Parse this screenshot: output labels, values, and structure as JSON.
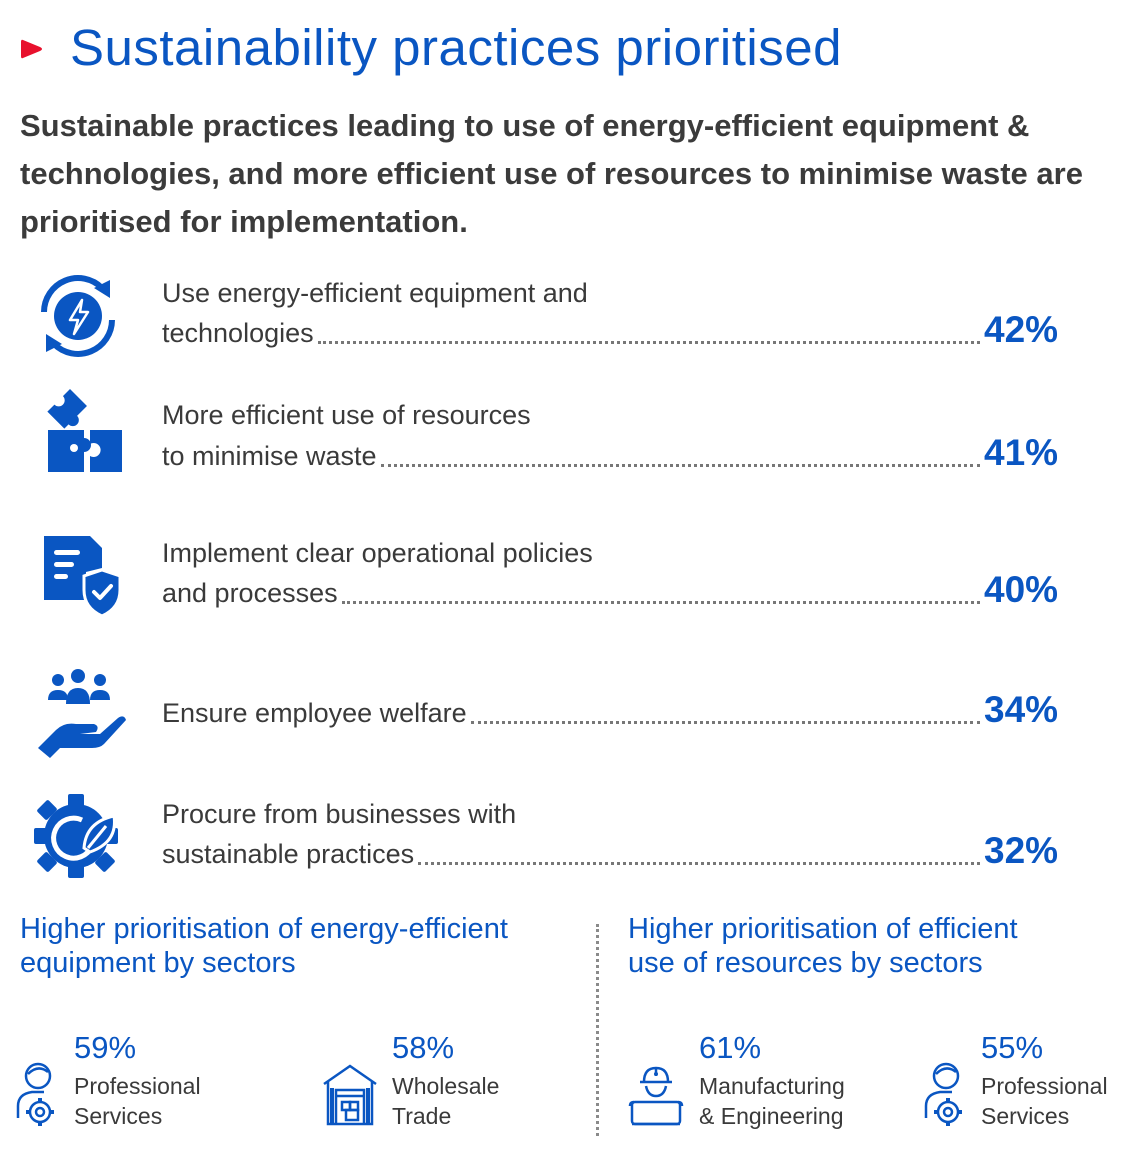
{
  "title": "Sustainability practices prioritised",
  "subtitle": "Sustainable practices leading to use of energy-efficient equipment & technologies, and more efficient use of resources to minimise waste are prioritised for implementation.",
  "colors": {
    "accent": "#0a56c2",
    "marker": "#e8112d",
    "text": "#3a3a3a"
  },
  "chart_data": {
    "type": "bar",
    "categories": [
      "Use energy-efficient equipment and technologies",
      "More efficient use of resources to minimise waste",
      "Implement clear operational policies and processes",
      "Ensure employee welfare",
      "Procure from businesses with sustainable practices"
    ],
    "values": [
      42,
      41,
      40,
      34,
      32
    ],
    "unit": "%"
  },
  "items": [
    {
      "icon": "energy-cycle-icon",
      "line1": "Use energy-efficient equipment and",
      "line2": "technologies",
      "value": "42%"
    },
    {
      "icon": "puzzle-icon",
      "line1": "More efficient use of resources",
      "line2": "to minimise waste",
      "value": "41%"
    },
    {
      "icon": "policy-shield-icon",
      "line1": "Implement clear operational policies",
      "line2": "and processes",
      "value": "40%"
    },
    {
      "icon": "employee-care-icon",
      "line1": "",
      "line2": "Ensure employee welfare",
      "value": "34%"
    },
    {
      "icon": "eco-gear-icon",
      "line1": "Procure from businesses with",
      "line2": "sustainable practices",
      "value": "32%"
    }
  ],
  "left_section": {
    "title_line1": "Higher prioritisation of energy-efficient",
    "title_line2": "equipment by sectors",
    "stats": [
      {
        "icon": "professional-services-icon",
        "value": "59%",
        "label1": "Professional",
        "label2": "Services"
      },
      {
        "icon": "wholesale-trade-icon",
        "value": "58%",
        "label1": "Wholesale",
        "label2": "Trade"
      }
    ]
  },
  "right_section": {
    "title_line1": "Higher prioritisation of efficient",
    "title_line2": "use of resources by sectors",
    "stats": [
      {
        "icon": "manufacturing-icon",
        "value": "61%",
        "label1": "Manufacturing",
        "label2": "& Engineering"
      },
      {
        "icon": "professional-services-icon",
        "value": "55%",
        "label1": "Professional",
        "label2": "Services"
      }
    ]
  }
}
